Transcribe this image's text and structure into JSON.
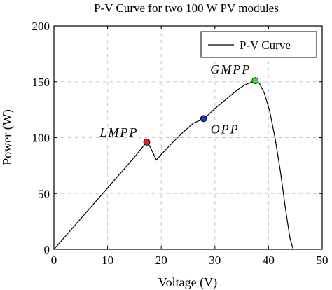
{
  "chart_data": {
    "type": "line",
    "title": "P-V Curve for two 100 W PV modules",
    "xlabel": "Voltage (V)",
    "ylabel": "Power (W)",
    "xlim": [
      0,
      50
    ],
    "ylim": [
      0,
      200
    ],
    "xticks": [
      0,
      10,
      20,
      30,
      40,
      50
    ],
    "yticks": [
      0,
      50,
      100,
      150,
      200
    ],
    "grid": true,
    "legend_position": "top-right",
    "series": [
      {
        "name": "P-V Curve",
        "color": "#000000",
        "x": [
          0,
          5,
          10,
          13,
          15,
          16.5,
          17.3,
          17.8,
          18.3,
          18.8,
          19.1,
          20,
          22,
          24,
          26,
          28,
          30,
          32,
          34,
          35.5,
          36.5,
          37.5,
          38.3,
          39.2,
          40.2,
          41.2,
          42.2,
          43.2,
          44.0,
          44.6
        ],
        "y": [
          0,
          27.5,
          55,
          71.5,
          82.5,
          91.5,
          96,
          93,
          88,
          83,
          80,
          85,
          95,
          104.5,
          113,
          117,
          126,
          134,
          142,
          147,
          149,
          151,
          148.5,
          140,
          124,
          100,
          70,
          35,
          10,
          0
        ]
      }
    ],
    "points": [
      {
        "label": "LMPP",
        "x": 17.3,
        "y": 96,
        "color": "#e02020"
      },
      {
        "label": "OPP",
        "x": 27.9,
        "y": 117,
        "color": "#2233cc"
      },
      {
        "label": "GMPP",
        "x": 37.5,
        "y": 151,
        "color": "#33dd33"
      }
    ]
  }
}
